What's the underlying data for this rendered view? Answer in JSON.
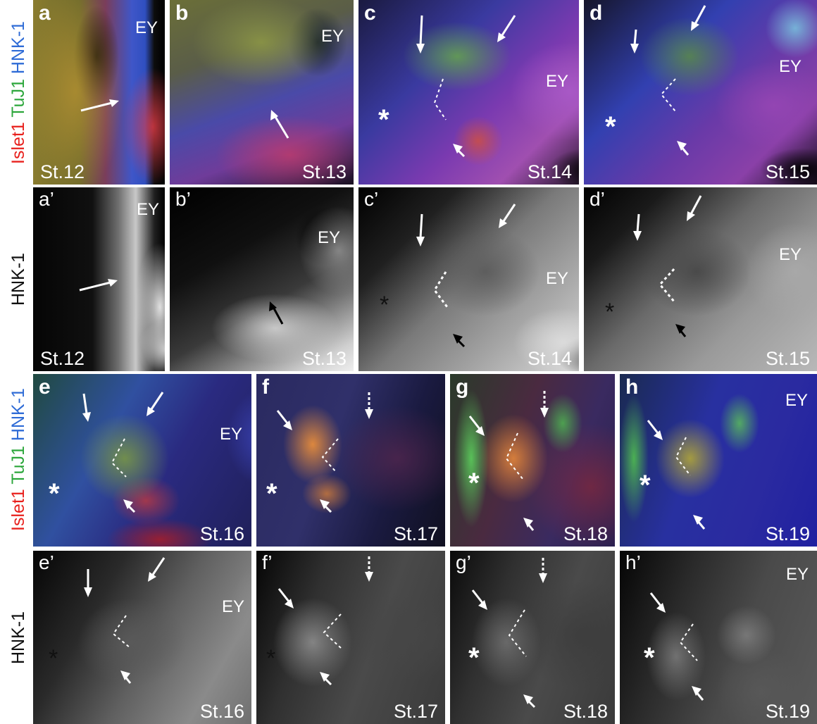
{
  "side_labels": {
    "row1_islet1": "Islet1",
    "row1_tuj1": "TuJ1",
    "row1_hnk1": "HNK-1",
    "row2_hnk1": "HNK-1",
    "row3_islet1": "Islet1",
    "row3_tuj1": "TuJ1",
    "row3_hnk1": "HNK-1",
    "row4_hnk1": "HNK-1"
  },
  "colors": {
    "islet1": "#e8201c",
    "tuj1": "#2ba63a",
    "hnk1": "#2e6bd6",
    "annotation": "#ffffff"
  },
  "panels": {
    "a": {
      "letter": "a",
      "stage": "St.12",
      "ey": "EY"
    },
    "b": {
      "letter": "b",
      "stage": "St.13",
      "ey": "EY"
    },
    "c": {
      "letter": "c",
      "stage": "St.14",
      "ey": "EY",
      "asterisk": "*"
    },
    "d": {
      "letter": "d",
      "stage": "St.15",
      "ey": "EY",
      "asterisk": "*"
    },
    "a2": {
      "letter": "a’",
      "stage": "St.12",
      "ey": "EY"
    },
    "b2": {
      "letter": "b’",
      "stage": "St.13",
      "ey": "EY"
    },
    "c2": {
      "letter": "c’",
      "stage": "St.14",
      "ey": "EY",
      "asterisk": "*"
    },
    "d2": {
      "letter": "d’",
      "stage": "St.15",
      "ey": "EY",
      "asterisk": "*"
    },
    "e": {
      "letter": "e",
      "stage": "St.16",
      "ey": "EY",
      "asterisk": "*"
    },
    "f": {
      "letter": "f",
      "stage": "St.17",
      "asterisk": "*"
    },
    "g": {
      "letter": "g",
      "stage": "St.18",
      "asterisk": "*"
    },
    "h": {
      "letter": "h",
      "stage": "St.19",
      "ey": "EY",
      "asterisk": "*"
    },
    "e2": {
      "letter": "e’",
      "stage": "St.16",
      "ey": "EY",
      "asterisk": "*"
    },
    "f2": {
      "letter": "f’",
      "stage": "St.17",
      "asterisk": "*"
    },
    "g2": {
      "letter": "g’",
      "stage": "St.18",
      "asterisk": "*"
    },
    "h2": {
      "letter": "h’",
      "stage": "St.19",
      "ey": "EY",
      "asterisk": "*"
    }
  }
}
